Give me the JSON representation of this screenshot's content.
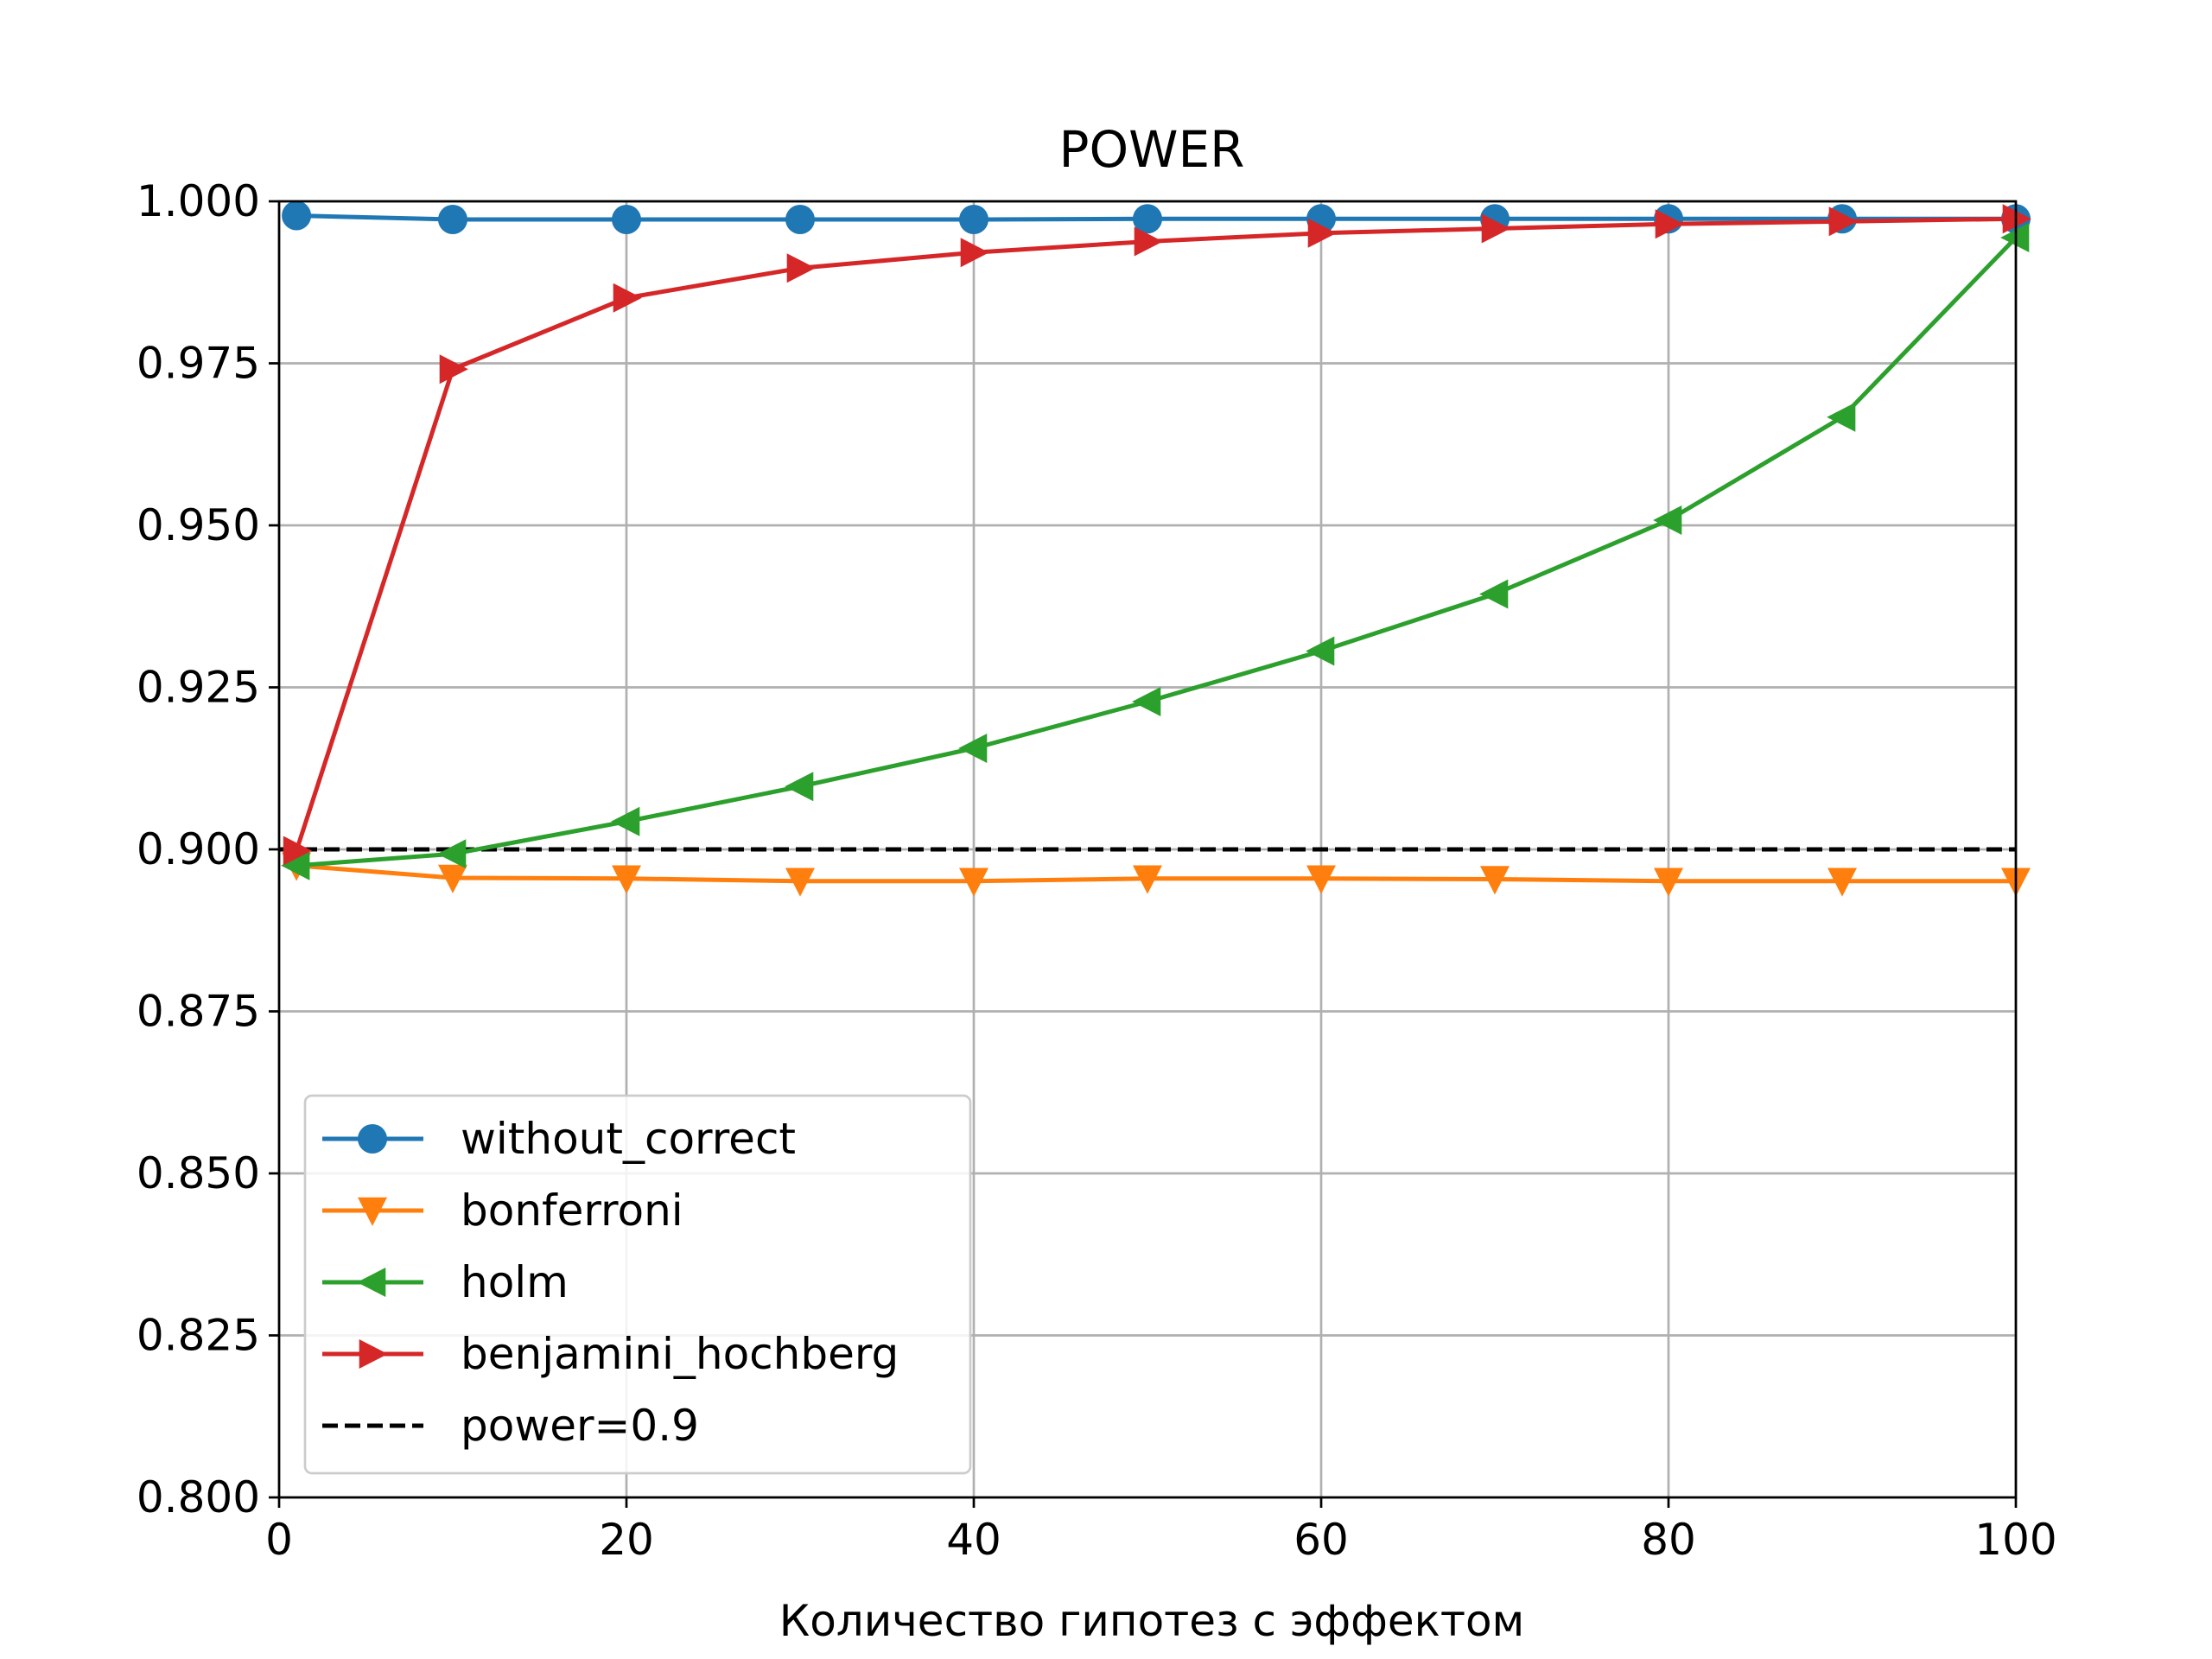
{
  "chart_data": {
    "type": "line",
    "title": "POWER",
    "xlabel": "Количество гипотез с эффектом",
    "ylabel": "",
    "xlim": [
      0,
      100
    ],
    "ylim": [
      0.8,
      1.0
    ],
    "grid": true,
    "legend_position": "lower-left",
    "x_ticks": [
      0,
      20,
      40,
      60,
      80,
      100
    ],
    "x_tick_labels": [
      "0",
      "20",
      "40",
      "60",
      "80",
      "100"
    ],
    "y_ticks": [
      0.8,
      0.825,
      0.85,
      0.875,
      0.9,
      0.925,
      0.95,
      0.975,
      1.0
    ],
    "y_tick_labels": [
      "0.800",
      "0.825",
      "0.850",
      "0.875",
      "0.900",
      "0.925",
      "0.950",
      "0.975",
      "1.000"
    ],
    "x": [
      1,
      10,
      20,
      30,
      40,
      50,
      60,
      70,
      80,
      90,
      100
    ],
    "series": [
      {
        "name": "without_correct",
        "color": "#1f77b4",
        "marker": "circle",
        "values": [
          0.9978,
          0.9972,
          0.9972,
          0.9972,
          0.9972,
          0.9973,
          0.9973,
          0.9973,
          0.9973,
          0.9973,
          0.9973
        ]
      },
      {
        "name": "bonferroni",
        "color": "#ff7f0e",
        "marker": "triangle-down",
        "values": [
          0.8975,
          0.8956,
          0.8955,
          0.8951,
          0.8951,
          0.8955,
          0.8955,
          0.8954,
          0.8951,
          0.8951,
          0.8951
        ]
      },
      {
        "name": "holm",
        "color": "#2ca02c",
        "marker": "triangle-left",
        "values": [
          0.8975,
          0.8993,
          0.9043,
          0.9097,
          0.9156,
          0.9228,
          0.9306,
          0.9394,
          0.9508,
          0.9667,
          0.9944
        ]
      },
      {
        "name": "benjamini_hochberg",
        "color": "#d62728",
        "marker": "triangle-right",
        "values": [
          0.8998,
          0.9741,
          0.9851,
          0.9897,
          0.9921,
          0.9938,
          0.9951,
          0.9958,
          0.9965,
          0.9969,
          0.9973
        ]
      }
    ],
    "reference_line": {
      "name": "power=0.9",
      "value": 0.9,
      "color": "#000000",
      "style": "dashed"
    }
  }
}
